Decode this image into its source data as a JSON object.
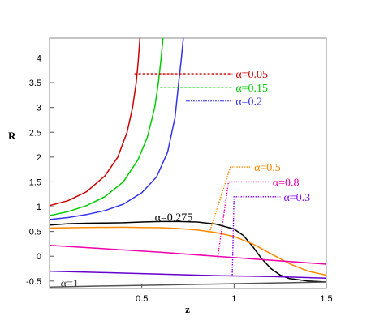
{
  "chart_data": {
    "type": "line",
    "xlabel": "z",
    "ylabel": "R",
    "xlim": [
      0,
      1.5
    ],
    "ylim": [
      -0.65,
      4.4
    ],
    "x_ticks": [
      0.5,
      1,
      1.5
    ],
    "y_ticks": [
      -0.5,
      0,
      0.5,
      1,
      1.5,
      2,
      2.5,
      3,
      3.5,
      4
    ],
    "grid": false,
    "series": [
      {
        "name": "α=0.05",
        "color": "#cc0000",
        "points": [
          [
            0,
            1.02
          ],
          [
            0.1,
            1.12
          ],
          [
            0.2,
            1.3
          ],
          [
            0.3,
            1.62
          ],
          [
            0.37,
            2.0
          ],
          [
            0.42,
            2.5
          ],
          [
            0.45,
            3.0
          ],
          [
            0.47,
            3.5
          ],
          [
            0.48,
            3.9
          ],
          [
            0.49,
            4.4
          ]
        ]
      },
      {
        "name": "α=0.15",
        "color": "#00cc00",
        "points": [
          [
            0,
            0.82
          ],
          [
            0.1,
            0.9
          ],
          [
            0.2,
            1.02
          ],
          [
            0.3,
            1.2
          ],
          [
            0.4,
            1.5
          ],
          [
            0.48,
            1.95
          ],
          [
            0.53,
            2.4
          ],
          [
            0.57,
            3.0
          ],
          [
            0.59,
            3.5
          ],
          [
            0.605,
            4.0
          ],
          [
            0.615,
            4.4
          ]
        ]
      },
      {
        "name": "α=0.2",
        "color": "#3333ee",
        "points": [
          [
            0,
            0.74
          ],
          [
            0.1,
            0.78
          ],
          [
            0.2,
            0.84
          ],
          [
            0.3,
            0.92
          ],
          [
            0.4,
            1.05
          ],
          [
            0.5,
            1.28
          ],
          [
            0.58,
            1.6
          ],
          [
            0.64,
            2.1
          ],
          [
            0.68,
            2.8
          ],
          [
            0.7,
            3.5
          ],
          [
            0.715,
            4.0
          ],
          [
            0.725,
            4.4
          ]
        ]
      },
      {
        "name": "α=0.275",
        "color": "#000000",
        "points": [
          [
            0,
            0.63
          ],
          [
            0.1,
            0.655
          ],
          [
            0.2,
            0.665
          ],
          [
            0.3,
            0.67
          ],
          [
            0.4,
            0.675
          ],
          [
            0.5,
            0.69
          ],
          [
            0.6,
            0.7
          ],
          [
            0.7,
            0.7
          ],
          [
            0.8,
            0.69
          ],
          [
            0.9,
            0.65
          ],
          [
            1.0,
            0.55
          ],
          [
            1.05,
            0.42
          ],
          [
            1.1,
            0.2
          ],
          [
            1.15,
            -0.05
          ],
          [
            1.2,
            -0.25
          ],
          [
            1.25,
            -0.38
          ],
          [
            1.3,
            -0.45
          ],
          [
            1.4,
            -0.5
          ],
          [
            1.5,
            -0.52
          ]
        ]
      },
      {
        "name": "α=0.5",
        "color": "#ff8800",
        "points": [
          [
            0,
            0.57
          ],
          [
            0.2,
            0.58
          ],
          [
            0.4,
            0.585
          ],
          [
            0.5,
            0.58
          ],
          [
            0.6,
            0.575
          ],
          [
            0.7,
            0.56
          ],
          [
            0.8,
            0.53
          ],
          [
            0.9,
            0.48
          ],
          [
            1.0,
            0.4
          ],
          [
            1.1,
            0.25
          ],
          [
            1.2,
            0.05
          ],
          [
            1.3,
            -0.15
          ],
          [
            1.4,
            -0.3
          ],
          [
            1.5,
            -0.38
          ]
        ]
      },
      {
        "name": "α=0.8",
        "color": "#ee00aa",
        "points": [
          [
            0,
            0.22
          ],
          [
            0.3,
            0.15
          ],
          [
            0.6,
            0.08
          ],
          [
            0.9,
            0.0
          ],
          [
            1.2,
            -0.08
          ],
          [
            1.5,
            -0.16
          ]
        ]
      },
      {
        "name": "α=0.3",
        "color": "#6600cc",
        "points": [
          [
            0,
            -0.3
          ],
          [
            0.3,
            -0.33
          ],
          [
            0.6,
            -0.36
          ],
          [
            0.9,
            -0.39
          ],
          [
            1.2,
            -0.41
          ],
          [
            1.5,
            -0.44
          ]
        ]
      },
      {
        "name": "α=1",
        "color": "#555555",
        "points": [
          [
            0,
            -0.62
          ],
          [
            0.3,
            -0.6
          ],
          [
            0.6,
            -0.58
          ],
          [
            0.9,
            -0.56
          ],
          [
            1.2,
            -0.54
          ],
          [
            1.5,
            -0.52
          ]
        ]
      }
    ],
    "annotations": [
      {
        "text": "α=0.05",
        "color": "#cc0000",
        "from": [
          0.46,
          3.68
        ],
        "label_at": [
          1.0,
          3.68
        ],
        "style": "dashed"
      },
      {
        "text": "α=0.15",
        "color": "#00cc00",
        "from": [
          0.6,
          3.4
        ],
        "label_at": [
          1.0,
          3.4
        ],
        "style": "dashed"
      },
      {
        "text": "α=0.2",
        "color": "#3333ee",
        "from": [
          0.74,
          3.13
        ],
        "label_at": [
          1.0,
          3.13
        ],
        "style": "dotted"
      },
      {
        "text": "α=0.5",
        "color": "#ff8800",
        "from": [
          0.87,
          0.52
        ],
        "knee": [
          0.98,
          1.8
        ],
        "label_at": [
          1.1,
          1.8
        ],
        "style": "dotted"
      },
      {
        "text": "α=0.8",
        "color": "#ee00aa",
        "from": [
          0.91,
          -0.05
        ],
        "knee": [
          0.97,
          1.5
        ],
        "label_at": [
          1.2,
          1.5
        ],
        "style": "dotted"
      },
      {
        "text": "α=0.3",
        "color": "#8800ee",
        "from": [
          0.99,
          -0.38
        ],
        "knee": [
          1.0,
          1.2
        ],
        "label_at": [
          1.26,
          1.2
        ],
        "style": "dotted"
      },
      {
        "text": "α=0.275",
        "color": "#000000",
        "label_at": [
          0.57,
          0.78
        ]
      },
      {
        "text": "α=1",
        "color": "#444444",
        "label_at": [
          0.06,
          -0.55
        ]
      }
    ]
  }
}
